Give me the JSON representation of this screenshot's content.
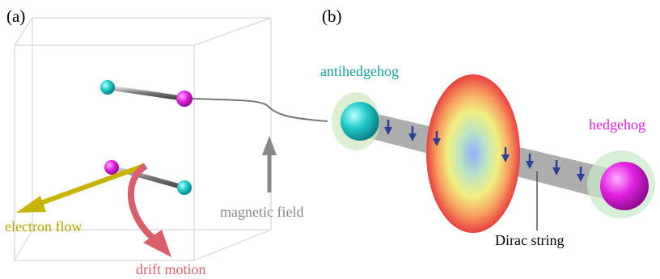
{
  "panel_a": {
    "label": "(a)",
    "electron_flow": "electron flow",
    "drift_motion": "drift motion",
    "magnetic_field": "magnetic field"
  },
  "panel_b": {
    "label": "(b)",
    "antihedgehog": "antihedgehog",
    "hedgehog": "hedgehog",
    "dirac_string": "Dirac string"
  }
}
